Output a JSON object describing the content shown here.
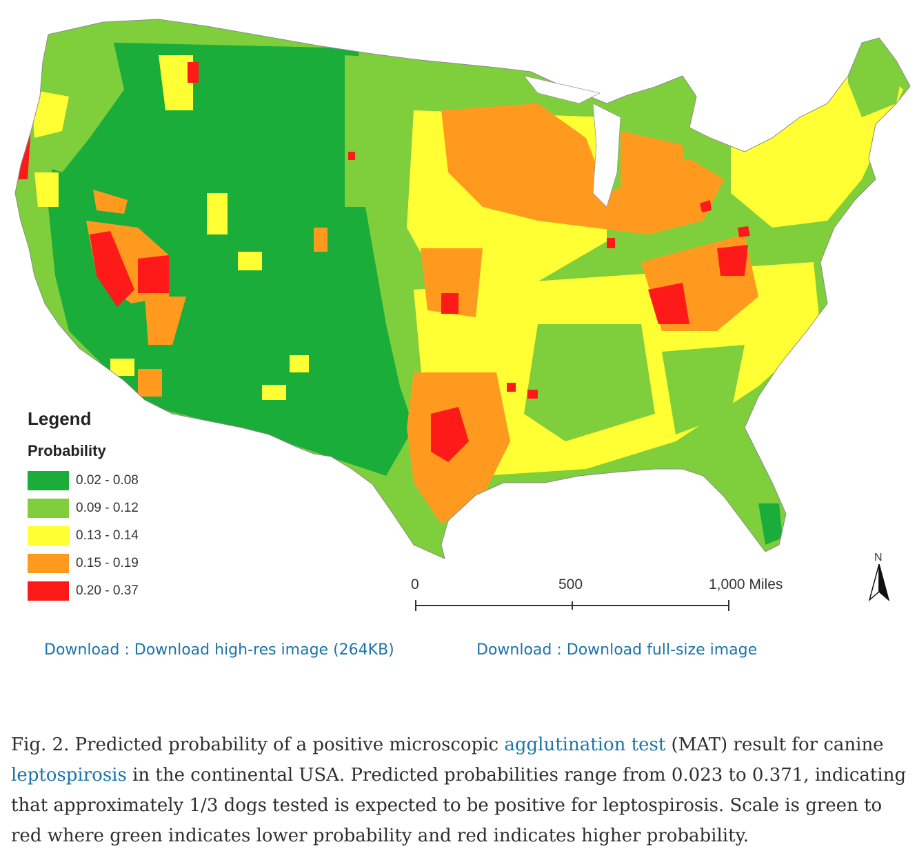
{
  "map": {
    "legend": {
      "title": "Legend",
      "subtitle": "Probability",
      "items": [
        {
          "label": "0.02 - 0.08",
          "color": "#1aad3a"
        },
        {
          "label": "0.09 - 0.12",
          "color": "#7fcf3d"
        },
        {
          "label": "0.13 - 0.14",
          "color": "#ffff33"
        },
        {
          "label": "0.15 - 0.19",
          "color": "#ff9a1f"
        },
        {
          "label": "0.20 - 0.37",
          "color": "#ff1a1a"
        }
      ]
    },
    "scale_bar": {
      "ticks": [
        "0",
        "500",
        "1,000 Miles"
      ]
    },
    "north_arrow": {
      "label": "N",
      "icon": "north-arrow-icon"
    }
  },
  "downloads": {
    "high_res": "Download : Download high-res image (264KB)",
    "full_size": "Download : Download full-size image"
  },
  "caption": {
    "prefix": "Fig. 2. Predicted probability of a positive microscopic ",
    "link1": "agglutination test",
    "middle1": " (MAT) result for canine ",
    "link2": "leptospirosis",
    "suffix": " in the continental USA. Predicted probabilities range from 0.023 to 0.371, indicating that approximately 1/3 dogs tested is expected to be positive for leptospirosis. Scale is green to red where green indicates lower probability and red indicates higher probability."
  }
}
